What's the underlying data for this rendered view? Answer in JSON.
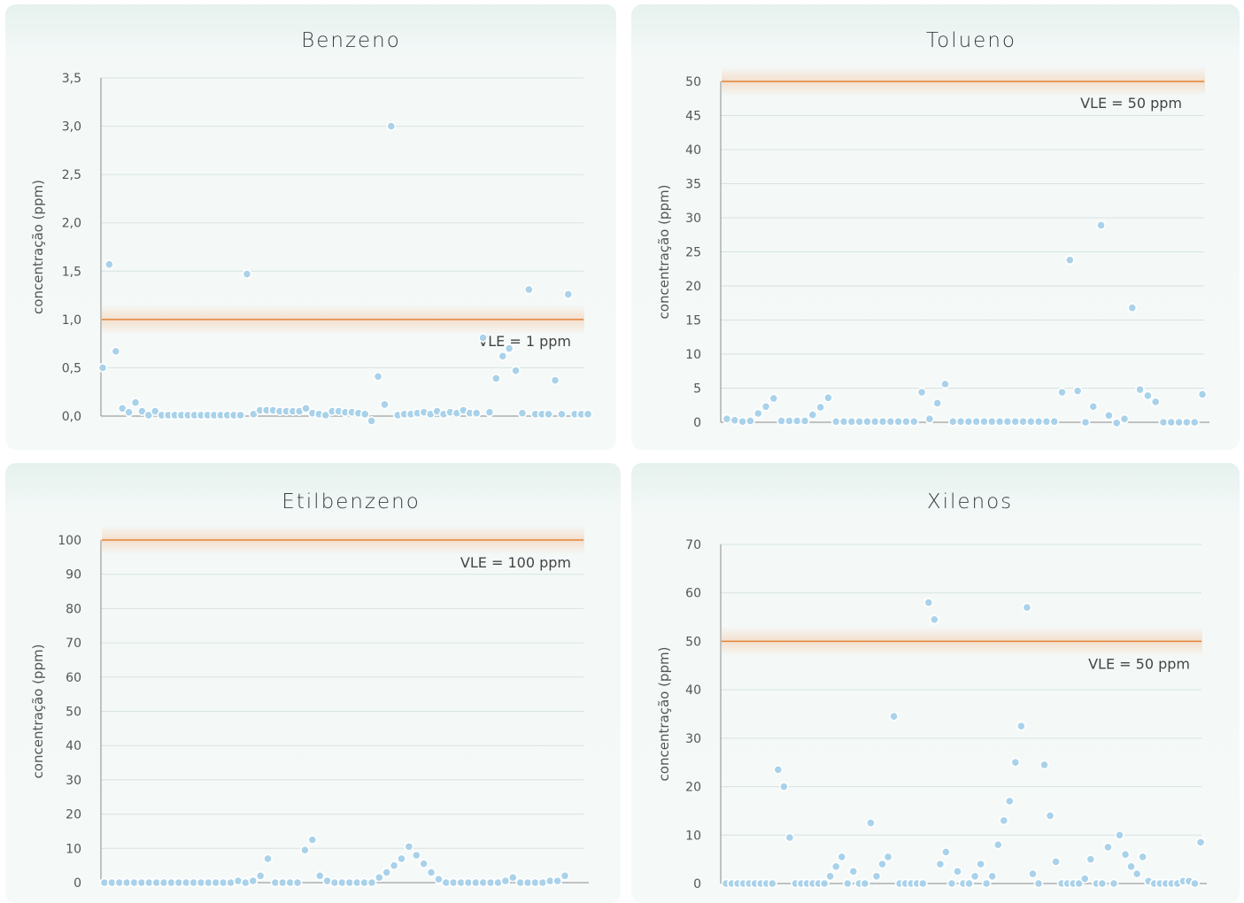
{
  "chart_data": [
    {
      "type": "scatter",
      "title": "Benzeno",
      "ylabel": "concentração (ppm)",
      "ylim": [
        0,
        3.5
      ],
      "yticks": [
        "0,0",
        "0,5",
        "1,0",
        "1,5",
        "2,0",
        "2,5",
        "3,0",
        "3,5"
      ],
      "limit": {
        "value": 1,
        "label": "VLE = 1 ppm"
      },
      "series": [
        {
          "values": [
            0.5,
            1.57,
            0.67,
            0.08,
            0.04,
            0.14,
            0.05,
            0.01,
            0.05,
            0.01,
            0.01,
            0.01,
            0.01,
            0.01,
            0.01,
            0.01,
            0.01,
            0.01,
            0.01,
            0.01,
            0.01,
            0.01,
            1.47,
            0.02,
            0.06,
            0.06,
            0.06,
            0.05,
            0.05,
            0.05,
            0.05,
            0.08,
            0.03,
            0.02,
            0.01,
            0.05,
            0.05,
            0.04,
            0.04,
            0.03,
            0.02,
            -0.05,
            0.41,
            0.12,
            3.0,
            0.01,
            0.02,
            0.02,
            0.03,
            0.04,
            0.02,
            0.05,
            0.02,
            0.04,
            0.03,
            0.06,
            0.03,
            0.03,
            0.81,
            0.04,
            0.39,
            0.62,
            0.7,
            0.47,
            0.03,
            1.31,
            0.02,
            0.02,
            0.02,
            0.37,
            0.02,
            1.26,
            0.02,
            0.02,
            0.02
          ]
        }
      ]
    },
    {
      "type": "scatter",
      "title": "Tolueno",
      "ylabel": "concentração (ppm)",
      "ylim": [
        0,
        50
      ],
      "yticks": [
        "0",
        "5",
        "10",
        "15",
        "20",
        "25",
        "30",
        "35",
        "40",
        "45",
        "50"
      ],
      "limit": {
        "value": 50,
        "label": "VLE = 50 ppm"
      },
      "series": [
        {
          "values": [
            0.5,
            0.3,
            0.1,
            0.2,
            1.3,
            2.3,
            3.5,
            0.2,
            0.2,
            0.2,
            0.2,
            1.1,
            2.2,
            3.6,
            0.1,
            0.1,
            0.1,
            0.1,
            0.1,
            0.1,
            0.1,
            0.1,
            0.1,
            0.1,
            0.1,
            4.4,
            0.5,
            2.8,
            5.6,
            0.1,
            0.1,
            0.1,
            0.1,
            0.1,
            0.1,
            0.1,
            0.1,
            0.1,
            0.1,
            0.1,
            0.1,
            0.1,
            0.1,
            4.4,
            23.8,
            4.6,
            0.0,
            2.3,
            28.9,
            1.0,
            -0.1,
            0.5,
            16.8,
            4.8,
            3.9,
            3.0,
            0.0,
            0.0,
            0.0,
            0.0,
            0.0,
            4.1
          ]
        }
      ]
    },
    {
      "type": "scatter",
      "title": "Etilbenzeno",
      "ylabel": "concentração (ppm)",
      "ylim": [
        0,
        100
      ],
      "yticks": [
        "0",
        "10",
        "20",
        "30",
        "40",
        "50",
        "60",
        "70",
        "80",
        "90",
        "100"
      ],
      "limit": {
        "value": 100,
        "label": "VLE = 100 ppm"
      },
      "series": [
        {
          "values": [
            0,
            0,
            0,
            0,
            0,
            0,
            0,
            0,
            0,
            0,
            0,
            0,
            0,
            0,
            0,
            0,
            0,
            0,
            0.5,
            0,
            0.5,
            2,
            7,
            0,
            0,
            0,
            0,
            9.5,
            12.5,
            2,
            0.5,
            0,
            0,
            0,
            0,
            0,
            0,
            1.5,
            3,
            5,
            7,
            10.5,
            8,
            5.5,
            3,
            1,
            0,
            0,
            0,
            0,
            0,
            0,
            0,
            0,
            0.5,
            1.5,
            0,
            0,
            0,
            0,
            0.5,
            0.5,
            2
          ]
        }
      ]
    },
    {
      "type": "scatter",
      "title": "Xilenos",
      "ylabel": "concentração (ppm)",
      "ylim": [
        0,
        70
      ],
      "yticks": [
        "0",
        "10",
        "20",
        "30",
        "40",
        "50",
        "60",
        "70"
      ],
      "limit": {
        "value": 50,
        "label": "VLE = 50 ppm"
      },
      "series": [
        {
          "values": [
            0,
            0,
            0,
            0,
            0,
            0,
            0,
            0,
            0,
            23.5,
            20,
            9.5,
            0,
            0,
            0,
            0,
            0,
            0,
            1.5,
            3.5,
            5.5,
            0,
            2.5,
            0,
            0,
            12.5,
            1.5,
            4,
            5.5,
            34.5,
            0,
            0,
            0,
            0,
            0,
            58,
            54.5,
            4,
            6.5,
            0,
            2.5,
            0,
            0,
            1.5,
            4,
            0,
            1.5,
            8,
            13,
            17,
            25,
            32.5,
            57,
            2,
            0,
            24.5,
            14,
            4.5,
            0,
            0,
            0,
            0,
            1,
            5,
            0,
            0,
            7.5,
            0,
            10,
            6,
            3.5,
            2,
            5.5,
            0.5,
            0,
            0,
            0,
            0,
            0,
            0.5,
            0.5,
            0,
            8.5
          ]
        }
      ]
    }
  ]
}
